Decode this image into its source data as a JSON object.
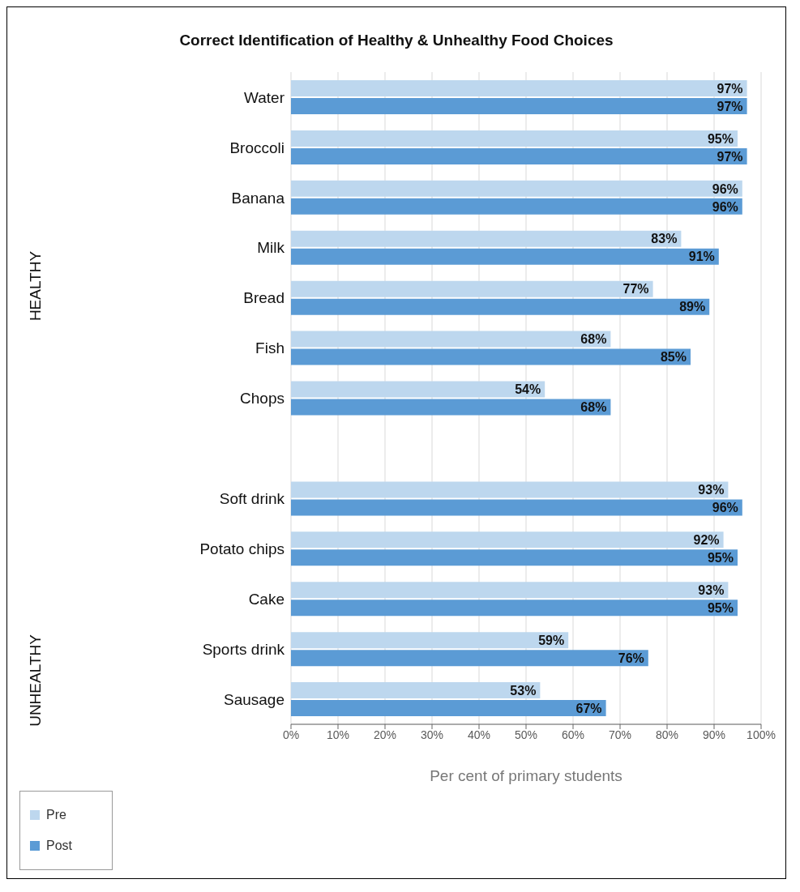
{
  "chart_data": {
    "type": "bar",
    "orientation": "horizontal",
    "title": "Correct Identification of Healthy & Unhealthy Food Choices",
    "xlabel": "Per cent of primary students",
    "categories": [
      "Water",
      "Broccoli",
      "Banana",
      "Milk",
      "Bread",
      "Fish",
      "Chops",
      null,
      "Soft drink",
      "Potato chips",
      "Cake",
      "Sports drink",
      "Sausage"
    ],
    "series": [
      {
        "name": "Pre",
        "color": "#bdd7ee",
        "values": [
          97,
          95,
          96,
          83,
          77,
          68,
          54,
          null,
          93,
          92,
          93,
          59,
          53
        ],
        "value_labels": [
          "97%",
          "95%",
          "96%",
          "83%",
          "77%",
          "68%",
          "54%",
          null,
          "93%",
          "92%",
          "93%",
          "59%",
          "53%"
        ]
      },
      {
        "name": "Post",
        "color": "#5b9bd5",
        "values": [
          97,
          97,
          96,
          91,
          89,
          85,
          68,
          null,
          96,
          95,
          95,
          76,
          67
        ],
        "value_labels": [
          "97%",
          "97%",
          "96%",
          "91%",
          "89%",
          "85%",
          "68%",
          null,
          "96%",
          "95%",
          "95%",
          "76%",
          "67%"
        ]
      }
    ],
    "xlim": [
      0,
      100
    ],
    "xticks": [
      {
        "value": 0,
        "label": "0%"
      },
      {
        "value": 10,
        "label": "10%"
      },
      {
        "value": 20,
        "label": "20%"
      },
      {
        "value": 30,
        "label": "30%"
      },
      {
        "value": 40,
        "label": "40%"
      },
      {
        "value": 50,
        "label": "50%"
      },
      {
        "value": 60,
        "label": "60%"
      },
      {
        "value": 70,
        "label": "70%"
      },
      {
        "value": 80,
        "label": "80%"
      },
      {
        "value": 90,
        "label": "90%"
      },
      {
        "value": 100,
        "label": "100%"
      }
    ],
    "grid": "x",
    "legend": "bottom left",
    "annotations": [
      "HEALTHY",
      "UNHEALTHY"
    ]
  }
}
